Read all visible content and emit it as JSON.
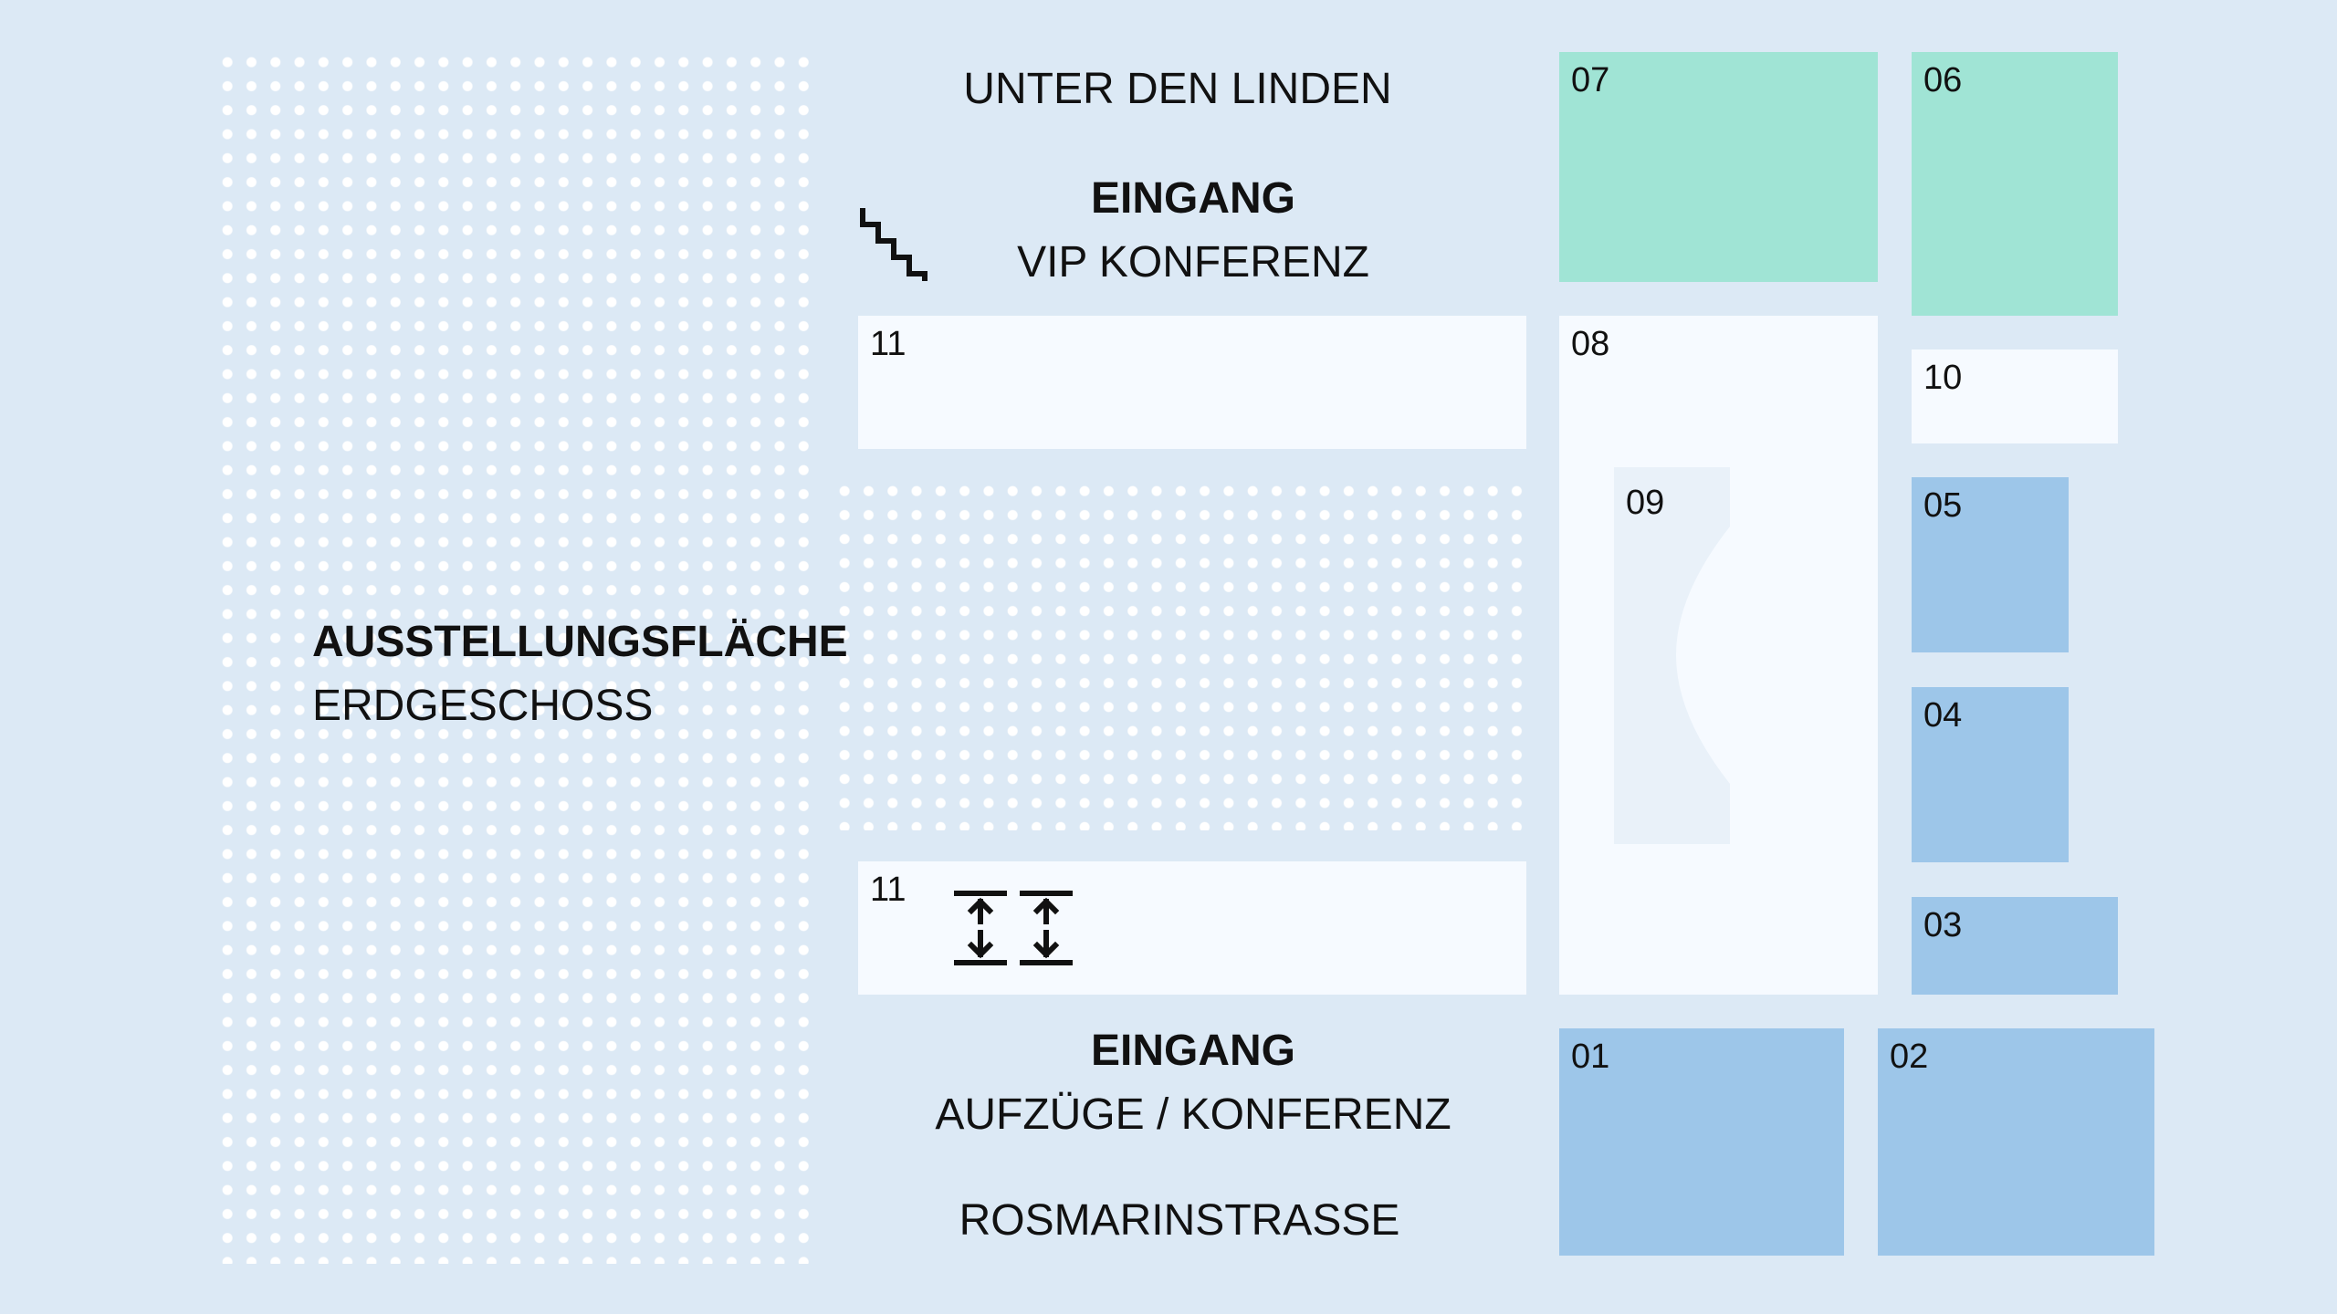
{
  "colors": {
    "background": "#dce9f5",
    "dots": "#ffffff",
    "white_room": "#f6faff",
    "green_room": "#a0e4d5",
    "blue_room": "#9dc6e9",
    "stage_room": "#e9f1f9"
  },
  "streets": {
    "north": "UNTER DEN LINDEN",
    "south": "ROSMARINSTRASSE"
  },
  "entrance_north": {
    "title": "EINGANG",
    "subtitle": "VIP KONFERENZ",
    "icon": "stairs-icon"
  },
  "entrance_south": {
    "title": "EINGANG",
    "subtitle": "AUFZÜGE / KONFERENZ",
    "icon": "elevator-icon"
  },
  "exhibition": {
    "title": "AUSSTELLUNGSFLÄCHE",
    "subtitle": "ERDGESCHOSS"
  },
  "rooms": {
    "r11a": "11",
    "r11b": "11",
    "r07": "07",
    "r06": "06",
    "r08": "08",
    "r09": "09",
    "r10": "10",
    "r05": "05",
    "r04": "04",
    "r03": "03",
    "r01": "01",
    "r02": "02"
  }
}
